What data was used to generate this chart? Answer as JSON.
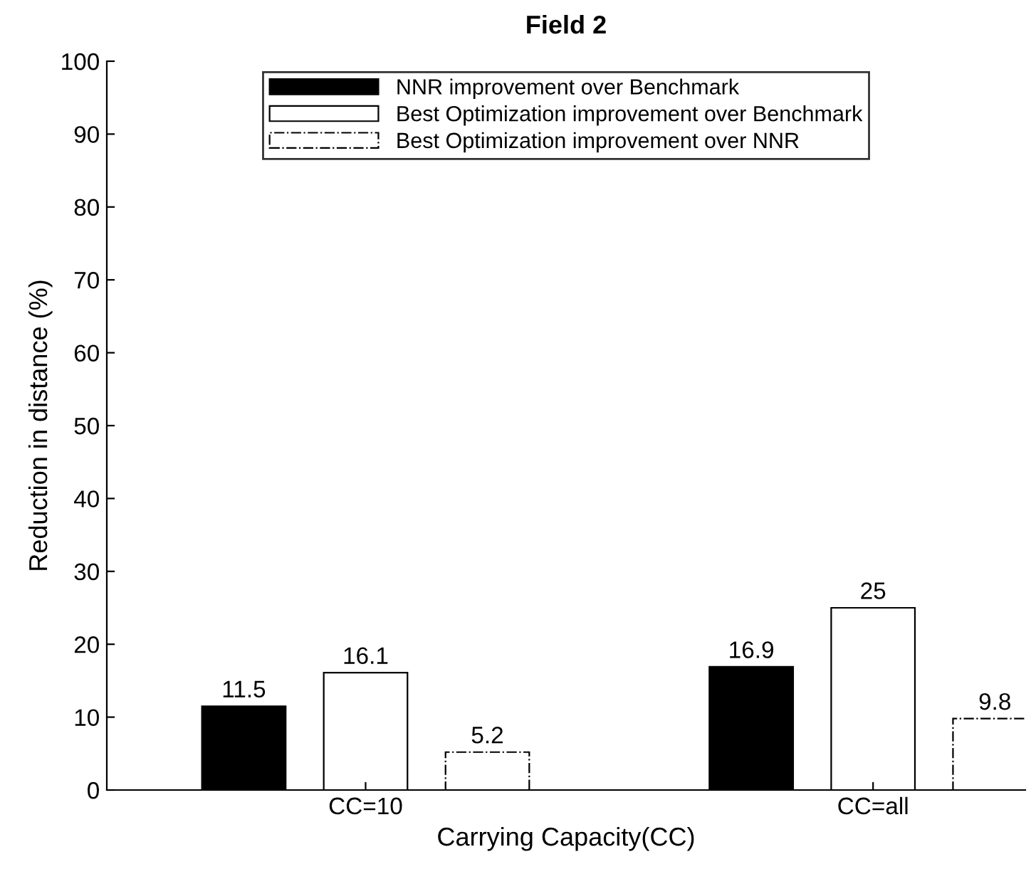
{
  "chart_data": {
    "type": "bar",
    "title": "Field 2",
    "xlabel": "Carrying Capacity(CC)",
    "ylabel": "Reduction in distance (%)",
    "categories": [
      "CC=10",
      "CC=all"
    ],
    "series": [
      {
        "name": "NNR improvement over Benchmark",
        "color": "#000000",
        "values": [
          11.5,
          16.9
        ]
      },
      {
        "name": "Best Optimization improvement over Benchmark",
        "color": "#ffffff",
        "values": [
          16.1,
          25
        ]
      },
      {
        "name": "Best Optimization improvement over NNR",
        "color": "#ffffff",
        "values": [
          5.2,
          9.8
        ],
        "line_style": "dashdot"
      }
    ],
    "ylim": [
      0,
      100
    ],
    "yticks": [
      0,
      10,
      20,
      30,
      40,
      50,
      60,
      70,
      80,
      90,
      100
    ],
    "data_labels": true,
    "legend": "top",
    "grid": false
  }
}
